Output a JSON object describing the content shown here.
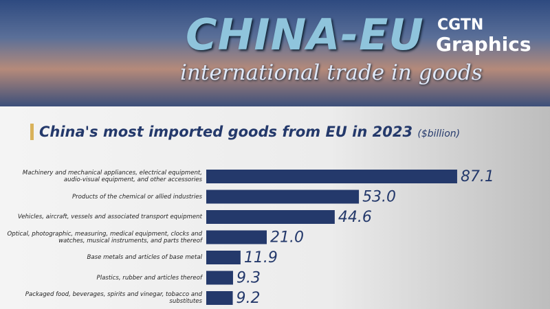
{
  "header": {
    "title": "CHINA-EU",
    "subtitle": "international trade in goods",
    "brand": "CGTN",
    "brand_sub": "Graphics"
  },
  "chart_data": {
    "type": "bar",
    "orientation": "horizontal",
    "title": "China's most imported goods from EU in 2023",
    "unit": "($billion)",
    "categories": [
      "Machinery and mechanical appliances, electrical equipment, audio-visual equipment, and other accessories",
      "Products of the chemical or allied industries",
      "Vehicles, aircraft, vessels and associated transport equipment",
      "Optical, photographic, measuring, medical equipment, clocks and watches, musical instruments, and parts thereof",
      "Base metals and articles of base metal",
      "Plastics, rubber and articles thereof",
      "Packaged food, beverages, spirits and vinegar, tobacco and substitutes"
    ],
    "values": [
      87.1,
      53.0,
      44.6,
      21.0,
      11.9,
      9.3,
      9.2
    ],
    "value_labels": [
      "87.1",
      "53.0",
      "44.6",
      "21.0",
      "11.9",
      "9.3",
      "9.2"
    ],
    "color": "#24396b",
    "xlim": [
      0,
      100
    ]
  }
}
